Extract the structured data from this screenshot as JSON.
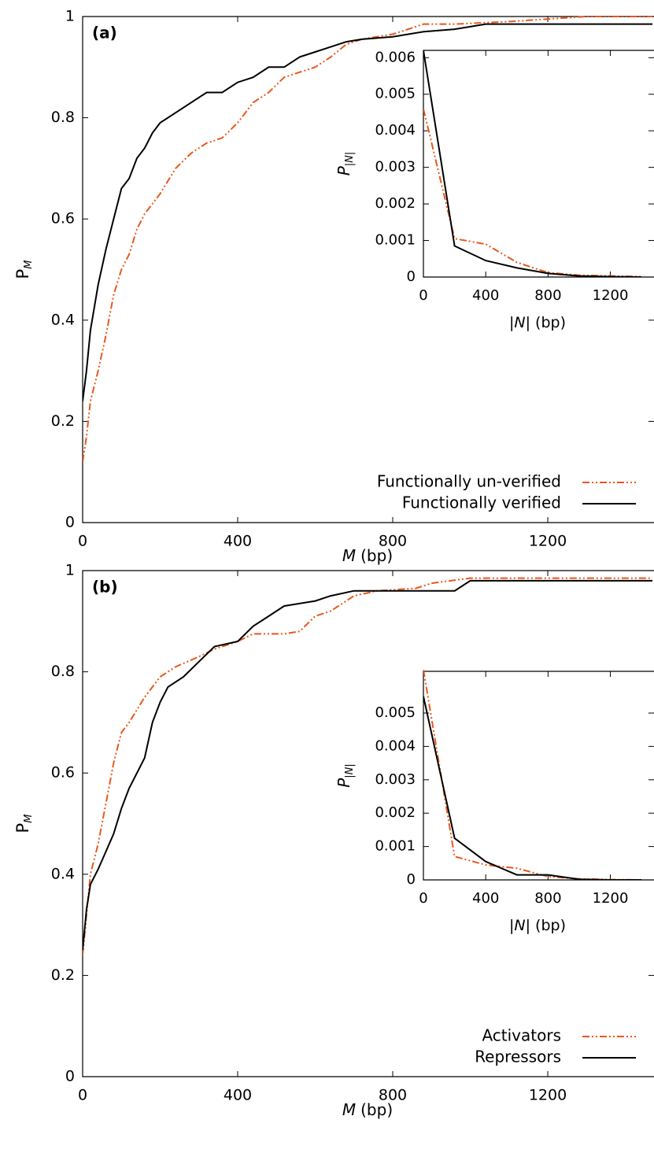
{
  "chart_data": [
    {
      "type": "line",
      "panel_label": "(a)",
      "xlabel_var": "M",
      "xlabel_unit": "(bp)",
      "ylabel": "P",
      "ylabel_sub": "M",
      "xlim": [
        0,
        1470
      ],
      "ylim": [
        0,
        1
      ],
      "xticks": [
        0,
        400,
        800,
        1200
      ],
      "yticks": [
        0,
        0.2,
        0.4,
        0.6,
        0.8,
        1
      ],
      "legend": "lower right",
      "series": [
        {
          "name": "Functionally un-verified",
          "color": "#e8581c",
          "style": "dash-dot-dot",
          "x": [
            0,
            10,
            20,
            40,
            60,
            80,
            100,
            120,
            140,
            160,
            200,
            240,
            280,
            320,
            360,
            400,
            440,
            480,
            520,
            560,
            600,
            640,
            680,
            720,
            800,
            840,
            880,
            960,
            1100,
            1300,
            1470
          ],
          "values": [
            0.12,
            0.17,
            0.24,
            0.3,
            0.37,
            0.45,
            0.5,
            0.53,
            0.58,
            0.61,
            0.65,
            0.7,
            0.73,
            0.75,
            0.76,
            0.79,
            0.83,
            0.85,
            0.88,
            0.89,
            0.9,
            0.92,
            0.945,
            0.955,
            0.965,
            0.975,
            0.985,
            0.985,
            0.99,
            1,
            1
          ]
        },
        {
          "name": "Functionally verified",
          "color": "#000000",
          "style": "solid",
          "x": [
            0,
            10,
            20,
            40,
            60,
            80,
            100,
            120,
            140,
            160,
            180,
            200,
            240,
            280,
            320,
            360,
            400,
            440,
            480,
            520,
            560,
            600,
            640,
            680,
            720,
            800,
            880,
            960,
            1040,
            1470
          ],
          "values": [
            0.24,
            0.3,
            0.38,
            0.47,
            0.54,
            0.6,
            0.66,
            0.68,
            0.72,
            0.74,
            0.77,
            0.79,
            0.81,
            0.83,
            0.85,
            0.85,
            0.87,
            0.88,
            0.9,
            0.9,
            0.92,
            0.93,
            0.94,
            0.95,
            0.955,
            0.96,
            0.97,
            0.975,
            0.985,
            0.985
          ]
        }
      ]
    },
    {
      "type": "line",
      "xlabel_var": "|N|",
      "xlabel_unit": "(bp)",
      "ylabel": "P",
      "ylabel_sub": "|N|",
      "xlim": [
        0,
        1470
      ],
      "ylim": [
        0,
        0.0062
      ],
      "xticks": [
        0,
        400,
        800,
        1200
      ],
      "yticks": [
        0,
        0.001,
        0.002,
        0.003,
        0.004,
        0.005,
        0.006
      ],
      "series": [
        {
          "color": "#e8581c",
          "style": "dash-dot-dot",
          "x": [
            0,
            200,
            400,
            600,
            800,
            1000,
            1200,
            1400
          ],
          "values": [
            0.0046,
            0.00105,
            0.0009,
            0.0004,
            0.00012,
            5e-05,
            3e-05,
            1e-05
          ]
        },
        {
          "color": "#000000",
          "style": "solid",
          "x": [
            0,
            200,
            400,
            600,
            800,
            1000,
            1200,
            1400
          ],
          "values": [
            0.0062,
            0.00085,
            0.00045,
            0.00025,
            0.0001,
            3e-05,
            1e-05,
            0
          ]
        }
      ]
    },
    {
      "type": "line",
      "panel_label": "(b)",
      "xlabel_var": "M",
      "xlabel_unit": "(bp)",
      "ylabel": "P",
      "ylabel_sub": "M",
      "xlim": [
        0,
        1470
      ],
      "ylim": [
        0,
        1
      ],
      "xticks": [
        0,
        400,
        800,
        1200
      ],
      "yticks": [
        0,
        0.2,
        0.4,
        0.6,
        0.8,
        1
      ],
      "legend": "lower right",
      "series": [
        {
          "name": "Activators",
          "color": "#e8581c",
          "style": "dash-dot-dot",
          "x": [
            0,
            20,
            40,
            60,
            80,
            100,
            120,
            160,
            200,
            240,
            300,
            340,
            400,
            440,
            520,
            560,
            600,
            640,
            700,
            760,
            860,
            900,
            1000,
            1470
          ],
          "values": [
            0.24,
            0.4,
            0.46,
            0.54,
            0.62,
            0.68,
            0.7,
            0.75,
            0.79,
            0.81,
            0.83,
            0.845,
            0.86,
            0.875,
            0.875,
            0.88,
            0.91,
            0.92,
            0.95,
            0.96,
            0.965,
            0.975,
            0.985,
            0.985
          ]
        },
        {
          "name": "Repressors",
          "color": "#000000",
          "style": "solid",
          "x": [
            0,
            10,
            20,
            40,
            60,
            80,
            100,
            120,
            140,
            160,
            180,
            200,
            220,
            260,
            300,
            340,
            400,
            440,
            480,
            520,
            600,
            640,
            700,
            800,
            960,
            1000,
            1470
          ],
          "values": [
            0.25,
            0.33,
            0.38,
            0.41,
            0.445,
            0.48,
            0.53,
            0.57,
            0.6,
            0.63,
            0.7,
            0.74,
            0.77,
            0.79,
            0.82,
            0.85,
            0.86,
            0.89,
            0.91,
            0.93,
            0.94,
            0.95,
            0.96,
            0.96,
            0.96,
            0.98,
            0.98
          ]
        }
      ]
    },
    {
      "type": "line",
      "xlabel_var": "|N|",
      "xlabel_unit": "(bp)",
      "ylabel": "P",
      "ylabel_sub": "|N|",
      "xlim": [
        0,
        1470
      ],
      "ylim": [
        0,
        0.00625
      ],
      "xticks": [
        0,
        400,
        800,
        1200
      ],
      "yticks": [
        0,
        0.001,
        0.002,
        0.003,
        0.004,
        0.005
      ],
      "series": [
        {
          "color": "#e8581c",
          "style": "dash-dot-dot",
          "x": [
            0,
            200,
            400,
            600,
            800,
            1000,
            1200,
            1400
          ],
          "values": [
            0.0063,
            0.0007,
            0.00045,
            0.00035,
            0.0001,
            3e-05,
            1e-05,
            0
          ]
        },
        {
          "color": "#000000",
          "style": "solid",
          "x": [
            0,
            200,
            400,
            600,
            800,
            1000,
            1200,
            1400
          ],
          "values": [
            0.0055,
            0.00125,
            0.00055,
            0.00015,
            0.00015,
            2e-05,
            0,
            0
          ]
        }
      ]
    }
  ]
}
